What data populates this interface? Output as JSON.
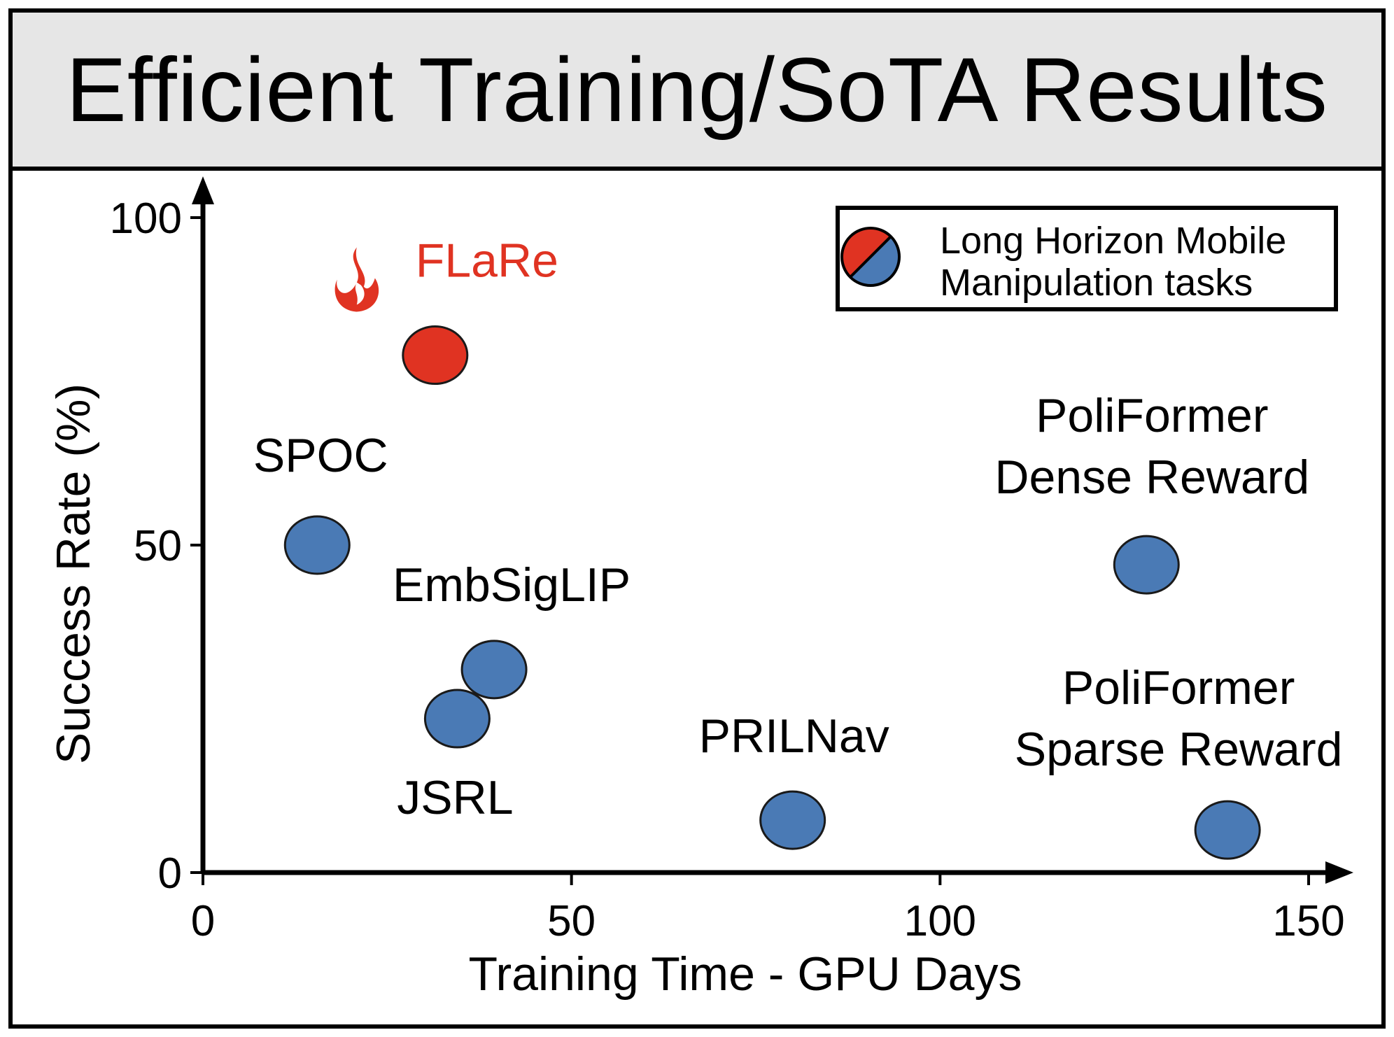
{
  "title": "Efficient Training/SoTA Results",
  "colors": {
    "highlight": "#e03322",
    "baseline": "#4a7ab5",
    "outline": "#1a1a1a",
    "header_bg": "#e6e6e6"
  },
  "legend": {
    "line1": "Long Horizon Mobile",
    "line2": "Manipulation tasks",
    "icon": "half-red-half-blue-circle"
  },
  "chart_data": {
    "type": "scatter",
    "xlabel": "Training Time - GPU Days",
    "ylabel": "Success Rate (%)",
    "xlim": [
      0,
      150
    ],
    "ylim": [
      0,
      100
    ],
    "xticks": [
      0,
      50,
      100,
      150
    ],
    "yticks": [
      0,
      50,
      100
    ],
    "grid": false,
    "legend_position": "top-right",
    "points": [
      {
        "label": "FLaRe",
        "x": 31.5,
        "y": 79,
        "color": "highlight",
        "lines": [
          "FLaRe"
        ],
        "icon": "flame-icon"
      },
      {
        "label": "SPOC",
        "x": 15.5,
        "y": 50,
        "color": "baseline",
        "lines": [
          "SPOC"
        ]
      },
      {
        "label": "EmbSigLIP",
        "x": 39.5,
        "y": 31,
        "color": "baseline",
        "lines": [
          "EmbSigLIP"
        ]
      },
      {
        "label": "JSRL",
        "x": 34.5,
        "y": 23.5,
        "color": "baseline",
        "lines": [
          "JSRL"
        ]
      },
      {
        "label": "PRILNav",
        "x": 80,
        "y": 8,
        "color": "baseline",
        "lines": [
          "PRILNav"
        ]
      },
      {
        "label": "PoliFormer Dense Reward",
        "x": 128,
        "y": 47,
        "color": "baseline",
        "lines": [
          "PoliFormer",
          "Dense Reward"
        ]
      },
      {
        "label": "PoliFormer Sparse Reward",
        "x": 139,
        "y": 6.5,
        "color": "baseline",
        "lines": [
          "PoliFormer",
          "Sparse Reward"
        ]
      }
    ]
  }
}
